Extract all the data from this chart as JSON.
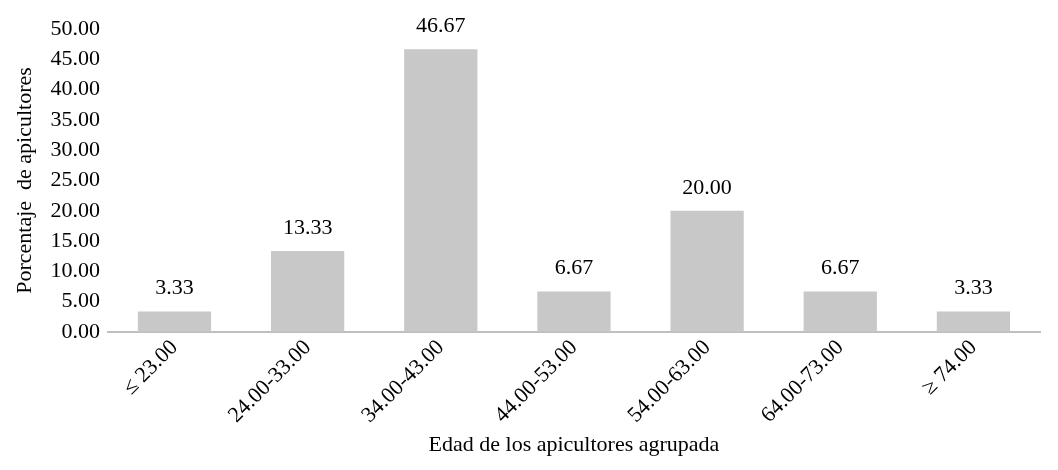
{
  "chart_data": {
    "type": "bar",
    "xlabel": "Edad de los apicultores agrupada",
    "ylabel": "Porcentaje  de apicultores",
    "categories": [
      "≤ 23.00",
      "24.00-33.00",
      "34.00-43.00",
      "44.00-53.00",
      "54.00-63.00",
      "64.00-73.00",
      "≥ 74.00"
    ],
    "values": [
      3.33,
      13.33,
      46.67,
      6.67,
      20.0,
      6.67,
      3.33
    ],
    "color": "#c8c8c8",
    "ylim": [
      0,
      50
    ],
    "yticks": [
      {
        "value": 0,
        "label": "0.00"
      },
      {
        "value": 5,
        "label": "5.00"
      },
      {
        "value": 10,
        "label": "10.00"
      },
      {
        "value": 15,
        "label": "15.00"
      },
      {
        "value": 20,
        "label": "20.00"
      },
      {
        "value": 25,
        "label": "25.00"
      },
      {
        "value": 30,
        "label": "30.00"
      },
      {
        "value": 35,
        "label": "35.00"
      },
      {
        "value": 40,
        "label": "40.00"
      },
      {
        "value": 45,
        "label": "45.00"
      },
      {
        "value": 50,
        "label": "50.00"
      }
    ],
    "value_labels": [
      "3.33",
      "13.33",
      "46.67",
      "6.67",
      "20.00",
      "6.67",
      "3.33"
    ],
    "grid": false,
    "legend": false
  }
}
